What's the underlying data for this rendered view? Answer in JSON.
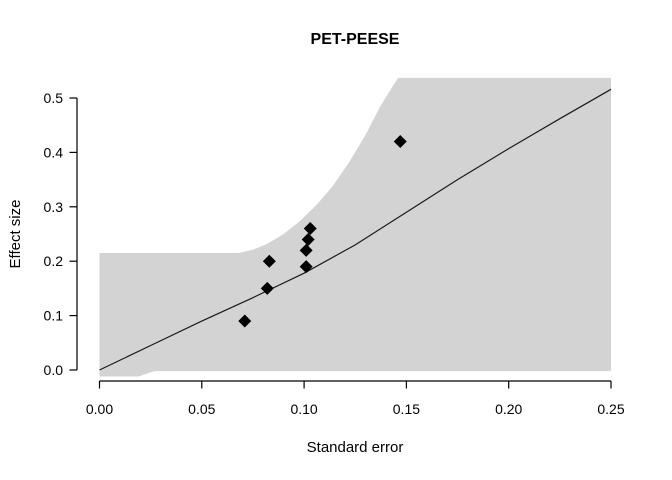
{
  "chart_data": {
    "type": "scatter",
    "title": "PET-PEESE",
    "xlabel": "Standard error",
    "ylabel": "Effect size",
    "xlim": [
      0,
      0.25
    ],
    "ylim": [
      0,
      0.5
    ],
    "grid": false,
    "legend": "none",
    "x_ticks": {
      "values": [
        0,
        0.05,
        0.1,
        0.15,
        0.2,
        0.25
      ],
      "labels": [
        "0.00",
        "0.05",
        "0.10",
        "0.15",
        "0.20",
        "0.25"
      ]
    },
    "y_ticks": {
      "values": [
        0,
        0.1,
        0.2,
        0.3,
        0.4,
        0.5
      ],
      "labels": [
        "0.0",
        "0.1",
        "0.2",
        "0.3",
        "0.4",
        "0.5"
      ]
    },
    "points": {
      "marker": "diamond",
      "color": "#000000",
      "se": [
        0.071,
        0.082,
        0.083,
        0.101,
        0.101,
        0.102,
        0.103,
        0.147
      ],
      "effect": [
        0.09,
        0.15,
        0.2,
        0.19,
        0.22,
        0.24,
        0.26,
        0.42
      ]
    },
    "regression_line": {
      "color": "#1a1a1a",
      "se": [
        0,
        0.025,
        0.05,
        0.075,
        0.1,
        0.125,
        0.15,
        0.175,
        0.2,
        0.225,
        0.25
      ],
      "effect": [
        0.0,
        0.045,
        0.09,
        0.133,
        0.178,
        0.23,
        0.29,
        0.35,
        0.407,
        0.462,
        0.516
      ]
    },
    "confidence_region": {
      "color": "#d3d3d3",
      "upper": [
        [
          0,
          0.215
        ],
        [
          0.055,
          0.215
        ],
        [
          0.068,
          0.215
        ],
        [
          0.075,
          0.221
        ],
        [
          0.082,
          0.232
        ],
        [
          0.09,
          0.25
        ],
        [
          0.098,
          0.274
        ],
        [
          0.106,
          0.303
        ],
        [
          0.114,
          0.338
        ],
        [
          0.122,
          0.382
        ],
        [
          0.13,
          0.432
        ],
        [
          0.137,
          0.483
        ],
        [
          0.143,
          0.52
        ],
        [
          0.146,
          0.537
        ],
        [
          0.25,
          0.537
        ]
      ],
      "lower": [
        [
          0,
          -0.012
        ],
        [
          0.019,
          -0.012
        ],
        [
          0.027,
          -0.002
        ],
        [
          0.25,
          -0.002
        ]
      ]
    }
  }
}
